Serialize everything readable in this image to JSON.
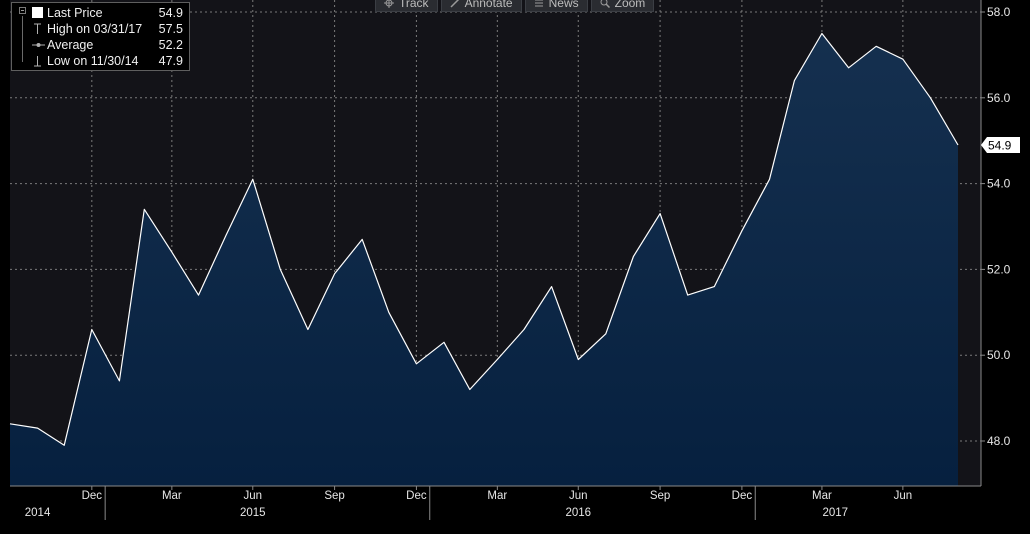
{
  "toolbar": {
    "buttons": [
      {
        "label": "Track",
        "icon": "crosshair-icon"
      },
      {
        "label": "Annotate",
        "icon": "pencil-icon"
      },
      {
        "label": "News",
        "icon": "news-icon"
      },
      {
        "label": "Zoom",
        "icon": "magnifier-icon"
      }
    ]
  },
  "legend": {
    "last_price": {
      "label": "Last Price",
      "value": "54.9"
    },
    "high": {
      "label": "High on 03/31/17",
      "value": "57.5"
    },
    "average": {
      "label": "Average",
      "value": "52.2"
    },
    "low": {
      "label": "Low on 11/30/14",
      "value": "47.9"
    }
  },
  "last_price_tag": "54.9",
  "colors": {
    "background": "#000000",
    "plot_background": "#131318",
    "area_top": "#15304f",
    "area_bottom": "#06203f",
    "line": "#ffffff",
    "grid": "#7a7a7a",
    "text": "#e6e6e6"
  },
  "chart_data": {
    "type": "area",
    "x": [
      "2014-09-30",
      "2014-10-31",
      "2014-11-30",
      "2014-12-31",
      "2015-01-31",
      "2015-02-28",
      "2015-03-31",
      "2015-04-30",
      "2015-05-31",
      "2015-06-30",
      "2015-07-31",
      "2015-08-31",
      "2015-09-30",
      "2015-10-31",
      "2015-11-30",
      "2015-12-31",
      "2016-01-31",
      "2016-02-29",
      "2016-03-31",
      "2016-04-30",
      "2016-05-31",
      "2016-06-30",
      "2016-07-31",
      "2016-08-31",
      "2016-09-30",
      "2016-10-31",
      "2016-11-30",
      "2016-12-31",
      "2017-01-31",
      "2017-02-28",
      "2017-03-31",
      "2017-04-30",
      "2017-05-31",
      "2017-06-30",
      "2017-07-31",
      "2017-08-31"
    ],
    "series": [
      {
        "values": [
          48.4,
          48.3,
          47.9,
          50.6,
          49.4,
          53.4,
          52.4,
          51.4,
          52.8,
          54.1,
          52.0,
          50.6,
          51.9,
          52.7,
          51.0,
          49.8,
          50.3,
          49.2,
          49.9,
          50.6,
          51.6,
          49.9,
          50.5,
          52.3,
          53.3,
          51.4,
          51.6,
          52.9,
          54.1,
          56.4,
          57.5,
          56.7,
          57.2,
          56.9,
          56.0,
          54.9
        ]
      }
    ],
    "ylim": [
      47.0,
      58.0
    ],
    "yticks": [
      "48.0",
      "50.0",
      "52.0",
      "54.0",
      "56.0",
      "58.0"
    ],
    "month_ticks": [
      {
        "label": "Dec",
        "x": "2014-12-31"
      },
      {
        "label": "Mar",
        "x": "2015-03-31"
      },
      {
        "label": "Jun",
        "x": "2015-06-30"
      },
      {
        "label": "Sep",
        "x": "2015-09-30"
      },
      {
        "label": "Dec",
        "x": "2015-12-31"
      },
      {
        "label": "Mar",
        "x": "2016-03-31"
      },
      {
        "label": "Jun",
        "x": "2016-06-30"
      },
      {
        "label": "Sep",
        "x": "2016-09-30"
      },
      {
        "label": "Dec",
        "x": "2016-12-31"
      },
      {
        "label": "Mar",
        "x": "2017-03-31"
      },
      {
        "label": "Jun",
        "x": "2017-06-30"
      }
    ],
    "year_labels": [
      {
        "label": "2014",
        "x": "2014-10-31"
      },
      {
        "label": "2015",
        "x": "2015-06-30"
      },
      {
        "label": "2016",
        "x": "2016-06-30"
      },
      {
        "label": "2017",
        "x": "2017-04-15"
      }
    ],
    "year_separators": [
      "2015-01-15",
      "2016-01-15",
      "2017-01-15"
    ],
    "grid": true,
    "legend_position": "top-left"
  }
}
